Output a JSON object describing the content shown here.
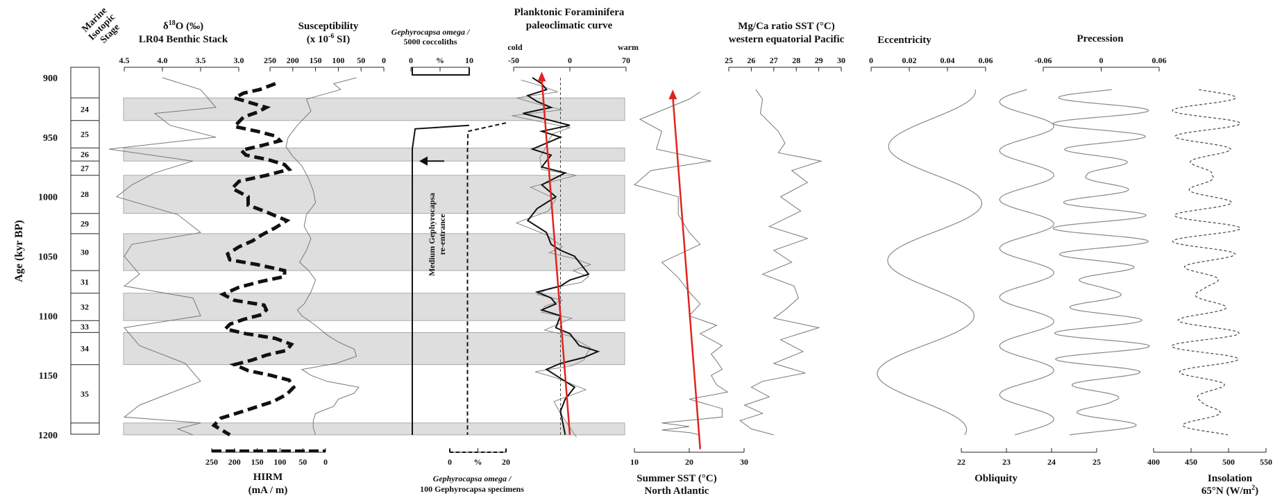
{
  "chart_data": [
    {
      "type": "table",
      "title": "Marine Isotopic Stage",
      "title_lines": [
        "Marine",
        "Isotopic",
        "Stage"
      ],
      "ylabel": "Age (kyr BP)",
      "ylim": [
        890,
        1205
      ],
      "yticks": [
        900,
        950,
        1000,
        1050,
        1100,
        1150,
        1200
      ],
      "stages": [
        {
          "label": "24",
          "top": 917,
          "bottom": 936,
          "glacial": true
        },
        {
          "label": "25",
          "top": 936,
          "bottom": 959,
          "glacial": false
        },
        {
          "label": "26",
          "top": 959,
          "bottom": 970,
          "glacial": true
        },
        {
          "label": "27",
          "top": 970,
          "bottom": 982,
          "glacial": false
        },
        {
          "label": "28",
          "top": 982,
          "bottom": 1014,
          "glacial": true
        },
        {
          "label": "29",
          "top": 1014,
          "bottom": 1031,
          "glacial": false
        },
        {
          "label": "30",
          "top": 1031,
          "bottom": 1062,
          "glacial": true
        },
        {
          "label": "31",
          "top": 1062,
          "bottom": 1081,
          "glacial": false
        },
        {
          "label": "32",
          "top": 1081,
          "bottom": 1104,
          "glacial": true
        },
        {
          "label": "33",
          "top": 1104,
          "bottom": 1114,
          "glacial": false
        },
        {
          "label": "34",
          "top": 1114,
          "bottom": 1141,
          "glacial": true
        },
        {
          "label": "35",
          "top": 1141,
          "bottom": 1190,
          "glacial": false
        }
      ]
    },
    {
      "type": "line",
      "title": "δ18O (‰) LR04 Benthic Stack",
      "title_lines": [
        "δ18O (‰)",
        "LR04 Benthic Stack"
      ],
      "xlim": [
        4.5,
        3.0
      ],
      "xticks": [
        "4.5",
        "4.0",
        "3.5",
        "3.0"
      ],
      "series": [
        {
          "values_x": [
            4.0,
            3.5,
            3.3,
            4.1,
            3.9,
            3.3,
            4.7,
            3.6,
            4.1,
            4.4,
            4.6,
            3.8,
            3.5,
            4.4,
            4.5,
            4.3,
            4.5,
            3.6,
            3.5,
            4.5,
            4.3,
            3.7,
            3.5,
            3.9,
            4.3,
            4.5,
            3.5,
            3.8,
            3.6
          ],
          "values_y": [
            900,
            910,
            925,
            930,
            940,
            950,
            960,
            970,
            980,
            990,
            1000,
            1015,
            1030,
            1040,
            1050,
            1065,
            1075,
            1085,
            1100,
            1110,
            1125,
            1140,
            1155,
            1165,
            1175,
            1185,
            1190,
            1195,
            1200
          ]
        }
      ]
    },
    {
      "type": "line",
      "title": "HIRM (mA / m)",
      "title_lines": [
        "HIRM",
        "(mA / m)"
      ],
      "xlim": [
        250,
        0
      ],
      "xticks": [
        "250",
        "200",
        "150",
        "100",
        "50",
        "0"
      ],
      "series": [
        {
          "values_x": [
            110,
            145,
            180,
            200,
            165,
            130,
            150,
            180,
            190,
            200,
            150,
            110,
            100,
            140,
            185,
            175,
            125,
            90,
            80,
            130,
            190,
            205,
            170,
            170,
            135,
            85,
            110,
            140,
            160,
            190,
            215,
            210,
            150,
            90,
            90,
            140,
            190,
            225,
            200,
            135,
            130,
            140,
            180,
            210,
            220,
            175,
            110,
            75,
            85,
            130,
            160,
            200,
            170,
            120,
            80,
            70,
            85,
            115,
            180,
            230,
            245,
            210
          ],
          "values_y": [
            905,
            910,
            913,
            917,
            921,
            925,
            929,
            933,
            937,
            941,
            945,
            949,
            953,
            957,
            961,
            965,
            969,
            973,
            977,
            982,
            987,
            993,
            1000,
            1007,
            1012,
            1020,
            1026,
            1032,
            1037,
            1042,
            1048,
            1053,
            1057,
            1062,
            1067,
            1071,
            1076,
            1082,
            1087,
            1091,
            1095,
            1099,
            1103,
            1107,
            1111,
            1115,
            1119,
            1124,
            1129,
            1133,
            1137,
            1141,
            1146,
            1150,
            1154,
            1160,
            1166,
            1172,
            1180,
            1186,
            1192,
            1200
          ]
        }
      ]
    },
    {
      "type": "line",
      "title": "Susceptibility (x 10-6 SI)",
      "title_lines": [
        "Susceptibility",
        "(x 10",
        "-6",
        " SI)"
      ],
      "xlim": [
        250,
        0
      ],
      "xticks": [
        "250",
        "200",
        "150",
        "100",
        "50",
        "0"
      ],
      "series": [
        {
          "values_x": [
            60,
            110,
            95,
            170,
            160,
            190,
            210,
            215,
            200,
            180,
            165,
            155,
            150,
            170,
            175,
            160,
            170,
            185,
            165,
            150,
            160,
            175,
            190,
            180,
            150,
            125,
            100,
            65,
            60,
            105,
            180,
            160,
            125,
            55,
            65,
            100,
            110,
            150,
            155,
            155,
            150
          ],
          "values_y": [
            900,
            905,
            910,
            918,
            928,
            940,
            950,
            958,
            966,
            974,
            985,
            995,
            1005,
            1015,
            1025,
            1035,
            1045,
            1055,
            1062,
            1070,
            1080,
            1090,
            1095,
            1100,
            1108,
            1116,
            1122,
            1128,
            1134,
            1140,
            1145,
            1150,
            1155,
            1160,
            1165,
            1170,
            1176,
            1182,
            1188,
            1194,
            1200
          ]
        }
      ]
    },
    {
      "type": "line",
      "title": "Gephyrocapsa omega / 5000 coccoliths",
      "title_lines": [
        "Gephyrocapsa omega /",
        "5000 coccoliths"
      ],
      "xlabel": "%",
      "xlim": [
        0,
        10
      ],
      "xticks": [
        "0",
        "%",
        "10"
      ],
      "bottom_axis": {
        "title_lines": [
          "Gephyrocapsa omega /",
          "100 Gephyrocapsa specimens"
        ],
        "xlim": [
          0,
          20
        ],
        "xticks": [
          "0",
          "%",
          "20"
        ]
      },
      "annotation": {
        "text": "Medium Gephyrocapsa re-entrance",
        "lines": [
          "Medium Gephyrocapsa",
          "re-entrance"
        ],
        "age": 970
      },
      "series": [
        {
          "name": "omega / 5000 coccoliths",
          "style": "solid",
          "values_x": [
            10,
            10,
            0.5,
            0,
            0,
            0
          ],
          "values_y": [
            940,
            940,
            943,
            960,
            1100,
            1200
          ]
        },
        {
          "name": "omega / 100 Gephyrocapsa specimens",
          "style": "dashed",
          "values_x": [
            20,
            20,
            6.5,
            6.3,
            6.3,
            6.3
          ],
          "values_y": [
            938,
            938,
            945,
            962,
            1100,
            1200
          ]
        }
      ]
    },
    {
      "type": "line",
      "title": "Planktonic Foraminifera paleoclimatic curve",
      "title_lines": [
        "Planktonic Foraminifera",
        "paleoclimatic curve"
      ],
      "xlim": [
        -50,
        70
      ],
      "xticks": [
        "-50",
        "0",
        "70"
      ],
      "axis_end_labels": [
        "cold",
        "warm"
      ],
      "series": [
        {
          "values_x": [
            -30,
            -20,
            -15,
            -35,
            -25,
            -10,
            -40,
            10,
            -20,
            0,
            -15,
            -30,
            -10,
            -20,
            5,
            -20,
            -5,
            -25,
            -35,
            -15,
            -10,
            0,
            15,
            20,
            25,
            30,
            10,
            0,
            -25,
            -10,
            -5,
            -20,
            0,
            -5,
            10,
            20,
            40,
            25,
            0,
            -15,
            -5,
            15,
            5,
            0,
            5
          ],
          "values_y": [
            900,
            905,
            910,
            915,
            920,
            925,
            930,
            940,
            945,
            950,
            955,
            960,
            965,
            975,
            980,
            990,
            1000,
            1010,
            1020,
            1030,
            1040,
            1045,
            1050,
            1055,
            1060,
            1065,
            1070,
            1075,
            1080,
            1085,
            1090,
            1095,
            1100,
            1110,
            1115,
            1125,
            1130,
            1135,
            1140,
            1145,
            1150,
            1160,
            1170,
            1180,
            1200
          ]
        }
      ],
      "trend_arrow": {
        "from": [
          10,
          1200
        ],
        "to": [
          -20,
          895
        ],
        "color": "#e0241d"
      },
      "dashed_reference_x": 0
    },
    {
      "type": "line",
      "title": "Summer SST (°C) North Atlantic",
      "title_lines": [
        "Summer SST (°C)",
        "North Atlantic"
      ],
      "xlim": [
        10,
        30
      ],
      "xticks": [
        "10",
        "20",
        "30"
      ],
      "series": [
        {
          "values_x": [
            22,
            20,
            11,
            15,
            14,
            24,
            13,
            10,
            18,
            18,
            20,
            22,
            15,
            18,
            20,
            22,
            20,
            25,
            22,
            26,
            24,
            25,
            26,
            24,
            25,
            27,
            20,
            26,
            26,
            15,
            20,
            15,
            20,
            22
          ],
          "values_y": [
            912,
            918,
            935,
            945,
            960,
            970,
            978,
            990,
            1000,
            1015,
            1030,
            1040,
            1055,
            1068,
            1080,
            1090,
            1100,
            1108,
            1115,
            1125,
            1132,
            1138,
            1145,
            1150,
            1158,
            1164,
            1170,
            1178,
            1185,
            1190,
            1193,
            1196,
            1198,
            1200
          ]
        }
      ],
      "trend_arrow": {
        "from": [
          22,
          1212
        ],
        "to": [
          17,
          910
        ],
        "color": "#e0241d"
      }
    },
    {
      "type": "line",
      "title": "Mg/Ca ratio SST (°C) western equatorial Pacific",
      "title_lines": [
        "Mg/Ca ratio SST (°C)",
        "western equatorial Pacific"
      ],
      "xlim": [
        25,
        30
      ],
      "xticks": [
        "25",
        "26",
        "27",
        "28",
        "29",
        "30"
      ],
      "series": [
        {
          "values_x": [
            26.2,
            26.5,
            26.4,
            27.2,
            27.5,
            27.2,
            29.1,
            27.8,
            28.5,
            27.3,
            28.2,
            26.8,
            28.5,
            27.0,
            27.8,
            26.5,
            27.9,
            28.1,
            27.5,
            27.0,
            29.0,
            27.3,
            28.3,
            27.0,
            28.4,
            26.5,
            26.0,
            26.8,
            25.7,
            26.5,
            25.5,
            26.0,
            27.0
          ],
          "values_y": [
            910,
            918,
            930,
            945,
            955,
            963,
            970,
            978,
            988,
            1000,
            1012,
            1025,
            1035,
            1045,
            1055,
            1065,
            1075,
            1085,
            1095,
            1102,
            1110,
            1120,
            1130,
            1140,
            1148,
            1155,
            1160,
            1168,
            1175,
            1182,
            1188,
            1195,
            1200
          ]
        }
      ]
    },
    {
      "type": "line",
      "title": "Eccentricity",
      "xlim": [
        0,
        0.06
      ],
      "xticks": [
        "0",
        "0.02",
        "0.04",
        "0.06"
      ],
      "series": [
        {
          "model": "sine_sum",
          "terms": [
            [
              0.02,
              95,
              0
            ],
            [
              0.01,
              400,
              1.2
            ]
          ],
          "offset": 0.032
        }
      ]
    },
    {
      "type": "line",
      "title": "Obliquity",
      "xlim": [
        22,
        25
      ],
      "xticks": [
        "22",
        "23",
        "24",
        "25"
      ],
      "series": [
        {
          "model": "sine",
          "mean": 23.45,
          "amp": 0.65,
          "period": 41
        }
      ]
    },
    {
      "type": "line",
      "title": "Precession",
      "xlim": [
        -0.06,
        0.06
      ],
      "xticks": [
        "-0.06",
        "0",
        "0.06"
      ],
      "series": [
        {
          "model": "sine_mod",
          "amp": 0.05,
          "period": 22
        }
      ]
    },
    {
      "type": "line",
      "title": "Insolation 65°N (W/m2)",
      "title_lines": [
        "Insolation",
        "65°N (W/m",
        "2",
        ")"
      ],
      "xlim": [
        400,
        550
      ],
      "xticks": [
        "400",
        "450",
        "500",
        "550"
      ],
      "series": [
        {
          "model": "sine_mod",
          "mean": 470,
          "amp": 45,
          "period": 22,
          "style": "dashed"
        }
      ]
    }
  ]
}
